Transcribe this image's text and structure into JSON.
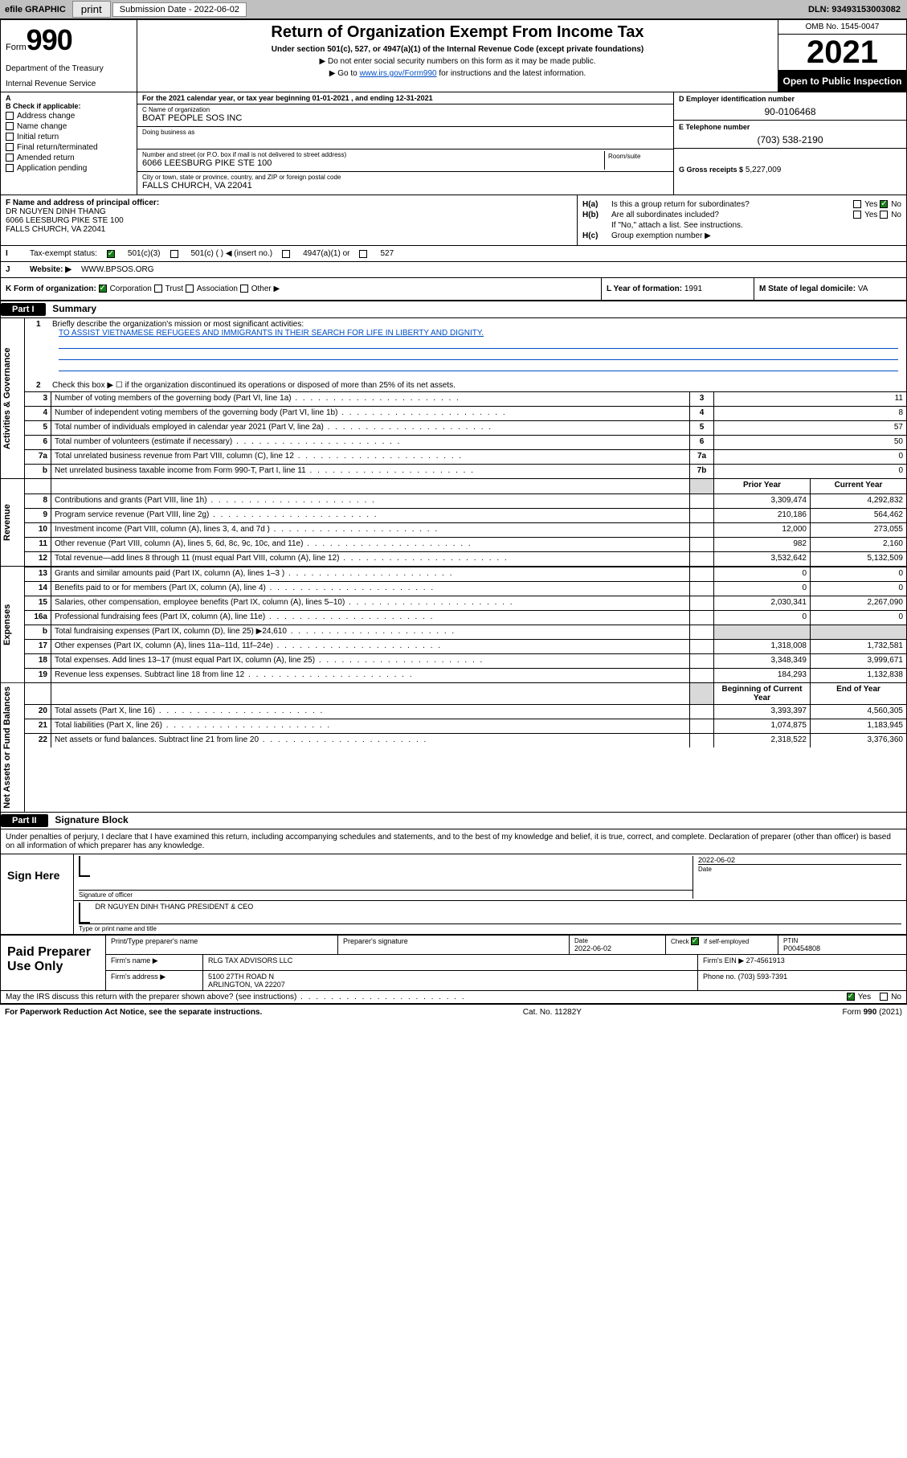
{
  "topbar": {
    "efile": "efile GRAPHIC",
    "print": "print",
    "sub_label": "Submission Date - 2022-06-02",
    "dln": "DLN: 93493153003082"
  },
  "header": {
    "form_word": "Form",
    "form_num": "990",
    "title": "Return of Organization Exempt From Income Tax",
    "sub1": "Under section 501(c), 527, or 4947(a)(1) of the Internal Revenue Code (except private foundations)",
    "sub2": "Do not enter social security numbers on this form as it may be made public.",
    "sub3_pre": "Go to ",
    "sub3_link": "www.irs.gov/Form990",
    "sub3_post": " for instructions and the latest information.",
    "dept": "Department of the Treasury",
    "irs": "Internal Revenue Service",
    "omb": "OMB No. 1545-0047",
    "year": "2021",
    "opi": "Open to Public Inspection"
  },
  "secA": {
    "taxline": "For the 2021 calendar year, or tax year beginning 01-01-2021   , and ending 12-31-2021",
    "b_label": "Check if applicable:",
    "b_items": [
      "Address change",
      "Name change",
      "Initial return",
      "Final return/terminated",
      "Amended return",
      "Application pending"
    ],
    "c_name_lbl": "C Name of organization",
    "c_name": "BOAT PEOPLE SOS INC",
    "dba_lbl": "Doing business as",
    "addr_lbl": "Number and street (or P.O. box if mail is not delivered to street address)",
    "room_lbl": "Room/suite",
    "addr": "6066 LEESBURG PIKE STE 100",
    "city_lbl": "City or town, state or province, country, and ZIP or foreign postal code",
    "city": "FALLS CHURCH, VA  22041",
    "d_lbl": "D Employer identification number",
    "d_val": "90-0106468",
    "e_lbl": "E Telephone number",
    "e_val": "(703) 538-2190",
    "g_lbl": "G Gross receipts $",
    "g_val": "5,227,009"
  },
  "secF": {
    "f_lbl": "F Name and address of principal officer:",
    "f_name": "DR NGUYEN DINH THANG",
    "f_addr1": "6066 LEESBURG PIKE STE 100",
    "f_addr2": "FALLS CHURCH, VA  22041",
    "ha_lbl": "Is this a group return for subordinates?",
    "hb_lbl": "Are all subordinates included?",
    "h_note": "If \"No,\" attach a list. See instructions.",
    "hc_lbl": "Group exemption number ▶",
    "ha_k": "H(a)",
    "hb_k": "H(b)",
    "hc_k": "H(c)",
    "yes": "Yes",
    "no": "No"
  },
  "secI": {
    "i_lbl": "Tax-exempt status:",
    "i_opts": [
      "501(c)(3)",
      "501(c) (  ) ◀ (insert no.)",
      "4947(a)(1) or",
      "527"
    ],
    "j_lbl": "Website: ▶",
    "j_val": "WWW.BPSOS.ORG"
  },
  "secK": {
    "k_lbl": "K Form of organization:",
    "k_opts": [
      "Corporation",
      "Trust",
      "Association",
      "Other ▶"
    ],
    "l_lbl": "L Year of formation:",
    "l_val": "1991",
    "m_lbl": "M State of legal domicile:",
    "m_val": "VA"
  },
  "part1": {
    "hdr": "Part I",
    "title": "Summary",
    "q1_lbl": "Briefly describe the organization's mission or most significant activities:",
    "q1_val": "TO ASSIST VIETNAMESE REFUGEES AND IMMIGRANTS IN THEIR SEARCH FOR LIFE IN LIBERTY AND DIGNITY.",
    "q2": "Check this box ▶ ☐  if the organization discontinued its operations or disposed of more than 25% of its net assets.",
    "vlab_ag": "Activities & Governance",
    "vlab_rev": "Revenue",
    "vlab_exp": "Expenses",
    "vlab_na": "Net Assets or Fund Balances",
    "col_prior": "Prior Year",
    "col_curr": "Current Year",
    "col_boy": "Beginning of Current Year",
    "col_eoy": "End of Year",
    "rows_ag": [
      {
        "n": "3",
        "d": "Number of voting members of the governing body (Part VI, line 1a)",
        "b": "3",
        "v": "11"
      },
      {
        "n": "4",
        "d": "Number of independent voting members of the governing body (Part VI, line 1b)",
        "b": "4",
        "v": "8"
      },
      {
        "n": "5",
        "d": "Total number of individuals employed in calendar year 2021 (Part V, line 2a)",
        "b": "5",
        "v": "57"
      },
      {
        "n": "6",
        "d": "Total number of volunteers (estimate if necessary)",
        "b": "6",
        "v": "50"
      },
      {
        "n": "7a",
        "d": "Total unrelated business revenue from Part VIII, column (C), line 12",
        "b": "7a",
        "v": "0"
      },
      {
        "n": "b",
        "d": "Net unrelated business taxable income from Form 990-T, Part I, line 11",
        "b": "7b",
        "v": "0"
      }
    ],
    "rows_rev": [
      {
        "n": "8",
        "d": "Contributions and grants (Part VIII, line 1h)",
        "p": "3,309,474",
        "c": "4,292,832"
      },
      {
        "n": "9",
        "d": "Program service revenue (Part VIII, line 2g)",
        "p": "210,186",
        "c": "564,462"
      },
      {
        "n": "10",
        "d": "Investment income (Part VIII, column (A), lines 3, 4, and 7d )",
        "p": "12,000",
        "c": "273,055"
      },
      {
        "n": "11",
        "d": "Other revenue (Part VIII, column (A), lines 5, 6d, 8c, 9c, 10c, and 11e)",
        "p": "982",
        "c": "2,160"
      },
      {
        "n": "12",
        "d": "Total revenue—add lines 8 through 11 (must equal Part VIII, column (A), line 12)",
        "p": "3,532,642",
        "c": "5,132,509"
      }
    ],
    "rows_exp": [
      {
        "n": "13",
        "d": "Grants and similar amounts paid (Part IX, column (A), lines 1–3 )",
        "p": "0",
        "c": "0"
      },
      {
        "n": "14",
        "d": "Benefits paid to or for members (Part IX, column (A), line 4)",
        "p": "0",
        "c": "0"
      },
      {
        "n": "15",
        "d": "Salaries, other compensation, employee benefits (Part IX, column (A), lines 5–10)",
        "p": "2,030,341",
        "c": "2,267,090"
      },
      {
        "n": "16a",
        "d": "Professional fundraising fees (Part IX, column (A), line 11e)",
        "p": "0",
        "c": "0"
      },
      {
        "n": "b",
        "d": "Total fundraising expenses (Part IX, column (D), line 25) ▶24,610",
        "p": "",
        "c": "",
        "grey": true
      },
      {
        "n": "17",
        "d": "Other expenses (Part IX, column (A), lines 11a–11d, 11f–24e)",
        "p": "1,318,008",
        "c": "1,732,581"
      },
      {
        "n": "18",
        "d": "Total expenses. Add lines 13–17 (must equal Part IX, column (A), line 25)",
        "p": "3,348,349",
        "c": "3,999,671"
      },
      {
        "n": "19",
        "d": "Revenue less expenses. Subtract line 18 from line 12",
        "p": "184,293",
        "c": "1,132,838"
      }
    ],
    "rows_na": [
      {
        "n": "20",
        "d": "Total assets (Part X, line 16)",
        "p": "3,393,397",
        "c": "4,560,305"
      },
      {
        "n": "21",
        "d": "Total liabilities (Part X, line 26)",
        "p": "1,074,875",
        "c": "1,183,945"
      },
      {
        "n": "22",
        "d": "Net assets or fund balances. Subtract line 21 from line 20",
        "p": "2,318,522",
        "c": "3,376,360"
      }
    ]
  },
  "part2": {
    "hdr": "Part II",
    "title": "Signature Block",
    "decl": "Under penalties of perjury, I declare that I have examined this return, including accompanying schedules and statements, and to the best of my knowledge and belief, it is true, correct, and complete. Declaration of preparer (other than officer) is based on all information of which preparer has any knowledge.",
    "sign_here": "Sign Here",
    "sig_off": "Signature of officer",
    "sig_date": "Date",
    "sig_date_val": "2022-06-02",
    "sig_name": "DR NGUYEN DINH THANG  PRESIDENT & CEO",
    "sig_name_lbl": "Type or print name and title",
    "paid": "Paid Preparer Use Only",
    "p_name_lbl": "Print/Type preparer's name",
    "p_sig_lbl": "Preparer's signature",
    "p_date_lbl": "Date",
    "p_date": "2022-06-02",
    "p_self": "Check ☑ if self-employed",
    "p_ptin_lbl": "PTIN",
    "p_ptin": "P00454808",
    "firm_name_lbl": "Firm's name    ▶",
    "firm_name": "RLG TAX ADVISORS LLC",
    "firm_ein_lbl": "Firm's EIN ▶",
    "firm_ein": "27-4561913",
    "firm_addr_lbl": "Firm's address ▶",
    "firm_addr1": "5100 27TH ROAD N",
    "firm_addr2": "ARLINGTON, VA  22207",
    "firm_phone_lbl": "Phone no.",
    "firm_phone": "(703) 593-7391",
    "discuss": "May the IRS discuss this return with the preparer shown above? (see instructions)",
    "yes": "Yes",
    "no": "No"
  },
  "footer": {
    "left": "For Paperwork Reduction Act Notice, see the separate instructions.",
    "mid": "Cat. No. 11282Y",
    "right": "Form 990 (2021)"
  }
}
